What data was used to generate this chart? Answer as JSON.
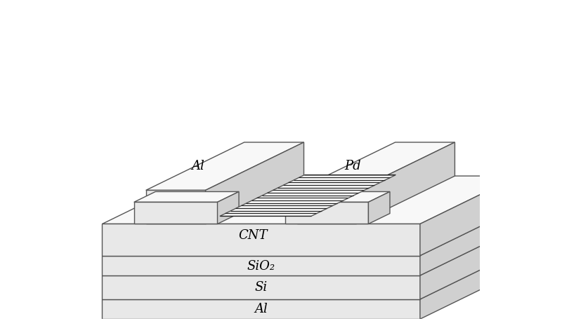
{
  "bg_color": "#ffffff",
  "line_color": "#555555",
  "c_top": "#f8f8f8",
  "c_front": "#e8e8e8",
  "c_right": "#d0d0d0",
  "c_side_dark": "#c0c0c0",
  "cnt_stripe_color": "#222222",
  "cnt_bg": "#f0f0f0",
  "label_Al": "Al",
  "label_Pd": "Pd",
  "label_CNT": "CNT",
  "label_SiO2": "SiO₂",
  "label_Si": "Si",
  "label_Al_bottom": "Al",
  "font_size": 13,
  "line_width": 1.0
}
